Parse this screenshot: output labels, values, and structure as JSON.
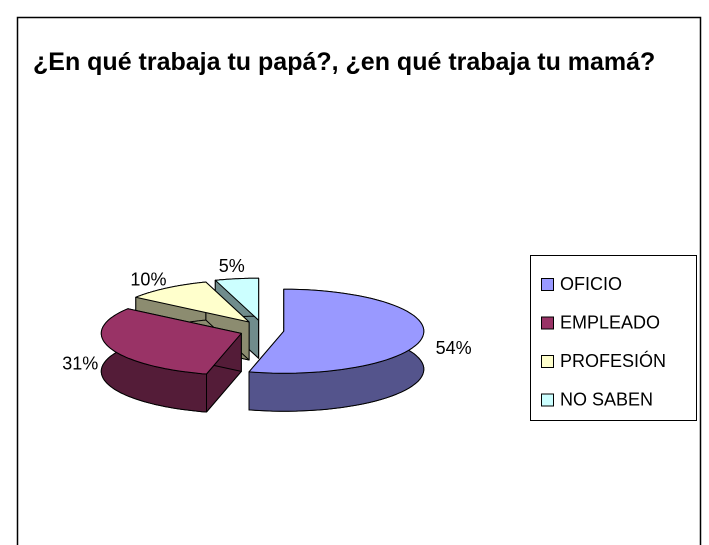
{
  "chart_data": {
    "type": "pie3d",
    "title": "¿En qué trabaja tu papá?, ¿en qué trabaja tu mamá?",
    "categories": [
      "OFICIO",
      "EMPLEADO",
      "PROFESIÓN",
      "NO SABEN"
    ],
    "values": [
      54,
      31,
      10,
      5
    ],
    "value_labels": [
      "54%",
      "31%",
      "10%",
      "5%"
    ],
    "colors": [
      "#9999ff",
      "#993366",
      "#ffffcc",
      "#ccffff"
    ],
    "legend": "right"
  }
}
